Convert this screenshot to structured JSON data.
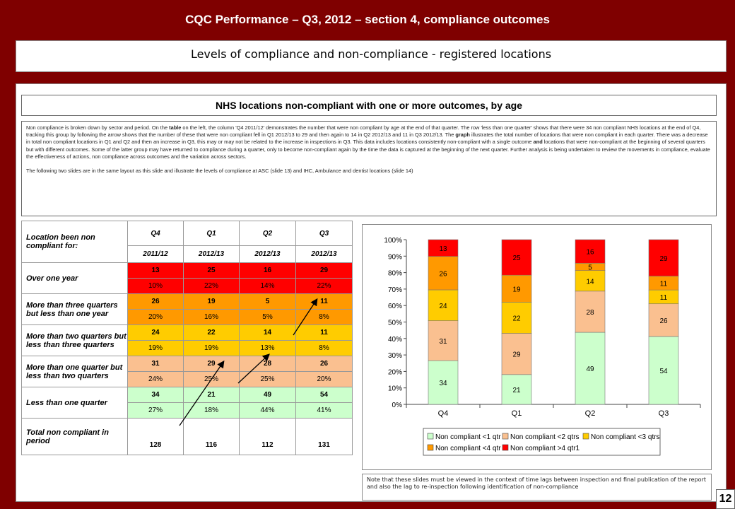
{
  "header": {
    "title": "CQC Performance – Q3, 2012 – section 4, compliance outcomes"
  },
  "subtitle": "Levels of compliance and non-compliance - registered locations",
  "section_title": "NHS locations non-compliant with one or more outcomes, by age",
  "description": {
    "p1_pre": "Non compliance is broken down by sector and period. On the ",
    "p1_table": "table",
    "p1_mid": " on the left, the column 'Q4 2011/12' demonstrates the number that were non compliant by age at the end of that quarter. The row 'less than one quarter' shows that there were 34 non compliant NHS locations at the end of Q4, tracking this group by following the arrow shows that the number of these that were non compliant fell in Q1 2012/13 to 29 and then again to 14 in Q2 2012/13 and 11 in Q3 2012/13. The ",
    "p1_graph": "graph",
    "p1_post": " illustrates the total number of locations that were non compliant in each quarter. There was a decrease in total non compliant locations in Q1 and Q2 and then an increase in Q3, this may or may not be related to the increase in inspections in Q3. This data includes locations consistently non-compliant with a single outcome ",
    "p1_and": "and",
    "p1_end": " locations that were non-compliant at the beginning of several quarters but with different outcomes. Some of the latter group may have returned to compliance during a quarter, only to become non-compliant again by the time the data is captured at the beginning of the next quarter. Further analysis is being undertaken to review the movements in compliance, evaluate the effectiveness of actions, non compliance across outcomes and the variation across sectors.",
    "p2": "The following two slides are in the same layout as this slide and illustrate the levels of compliance at ASC (slide 13) and IHC, Ambulance and dentist locations (slide 14)"
  },
  "table": {
    "header_label": "Location been non compliant for:",
    "quarters": [
      "Q4",
      "Q1",
      "Q2",
      "Q3"
    ],
    "years": [
      "2011/12",
      "2012/13",
      "2012/13",
      "2012/13"
    ],
    "rows": [
      {
        "label": "Over one year",
        "counts": [
          "13",
          "25",
          "16",
          "29"
        ],
        "pcts": [
          "10%",
          "22%",
          "14%",
          "22%"
        ],
        "cls": "c1"
      },
      {
        "label": "More than three quarters but less than one year",
        "counts": [
          "26",
          "19",
          "5",
          "11"
        ],
        "pcts": [
          "20%",
          "16%",
          "5%",
          "8%"
        ],
        "cls": "c2"
      },
      {
        "label": "More than two quarters but less than three quarters",
        "counts": [
          "24",
          "22",
          "14",
          "11"
        ],
        "pcts": [
          "19%",
          "19%",
          "13%",
          "8%"
        ],
        "cls": "c3"
      },
      {
        "label": "More than one quarter but less than two quarters",
        "counts": [
          "31",
          "29",
          "28",
          "26"
        ],
        "pcts": [
          "24%",
          "25%",
          "25%",
          "20%"
        ],
        "cls": "c4"
      },
      {
        "label": "Less than one quarter",
        "counts": [
          "34",
          "21",
          "49",
          "54"
        ],
        "pcts": [
          "27%",
          "18%",
          "44%",
          "41%"
        ],
        "cls": "c5"
      }
    ],
    "total_label": "Total non compliant in period",
    "totals": [
      "128",
      "116",
      "112",
      "131"
    ]
  },
  "chart_data": {
    "type": "bar",
    "stacked": "percent",
    "categories": [
      "Q4",
      "Q1",
      "Q2",
      "Q3"
    ],
    "ylim": [
      0,
      100
    ],
    "yticks": [
      "0%",
      "10%",
      "20%",
      "30%",
      "40%",
      "50%",
      "60%",
      "70%",
      "80%",
      "90%",
      "100%"
    ],
    "series": [
      {
        "name": "Non compliant <1 qtr",
        "color": "#ccffcc",
        "values": [
          34,
          21,
          49,
          54
        ]
      },
      {
        "name": "Non compliant <2 qtrs",
        "color": "#fac090",
        "values": [
          31,
          29,
          28,
          26
        ]
      },
      {
        "name": "Non compliant <3 qtrs",
        "color": "#ffcc00",
        "values": [
          24,
          22,
          14,
          11
        ]
      },
      {
        "name": "Non compliant <4 qtr",
        "color": "#ff9900",
        "values": [
          26,
          19,
          5,
          11
        ]
      },
      {
        "name": "Non compliant >4 qtr1",
        "color": "#ff0000",
        "values": [
          13,
          25,
          16,
          29
        ]
      }
    ],
    "legend_position": "bottom",
    "grid": false
  },
  "note": "Note that these slides must be viewed in the context of time lags between inspection and final publication of the report and also the lag to re-inspection following identification of non-compliance",
  "page_number": "12"
}
